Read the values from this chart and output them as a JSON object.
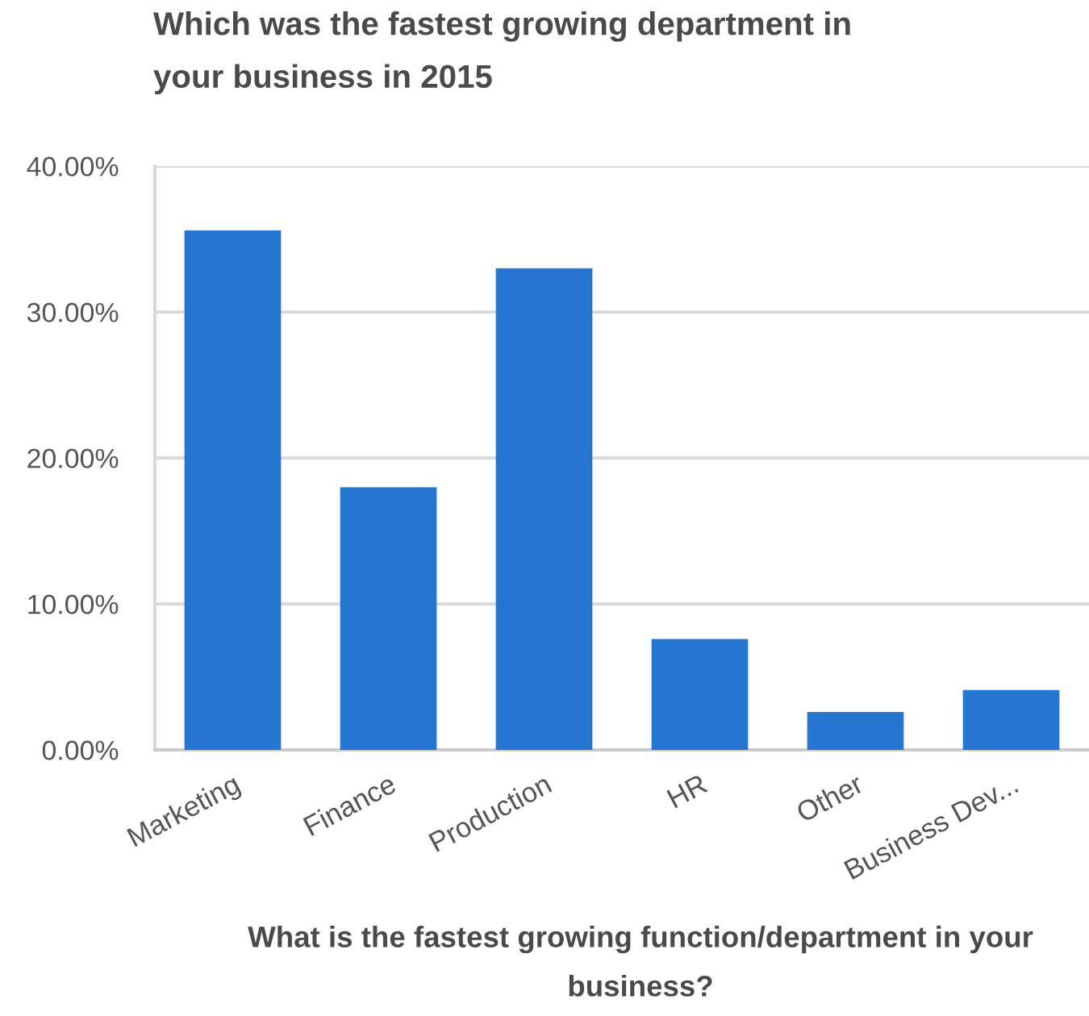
{
  "chart_data": {
    "type": "bar",
    "title": "Which was the fastest growing department in your business in 2015",
    "xlabel": "What is the fastest growing function/department in your business?",
    "categories": [
      "Marketing",
      "Finance",
      "Production",
      "HR",
      "Other",
      "Business Dev..."
    ],
    "values": [
      35.6,
      18.0,
      33.0,
      7.6,
      2.6,
      4.1
    ],
    "color": "#2476d1",
    "ylim": [
      0,
      40
    ],
    "yticks": [
      {
        "value": 0,
        "label": "0.00%"
      },
      {
        "value": 10,
        "label": "10.00%"
      },
      {
        "value": 20,
        "label": "20.00%"
      },
      {
        "value": 30,
        "label": "30.00%"
      },
      {
        "value": 40,
        "label": "40.00%"
      }
    ],
    "grid": "y"
  }
}
